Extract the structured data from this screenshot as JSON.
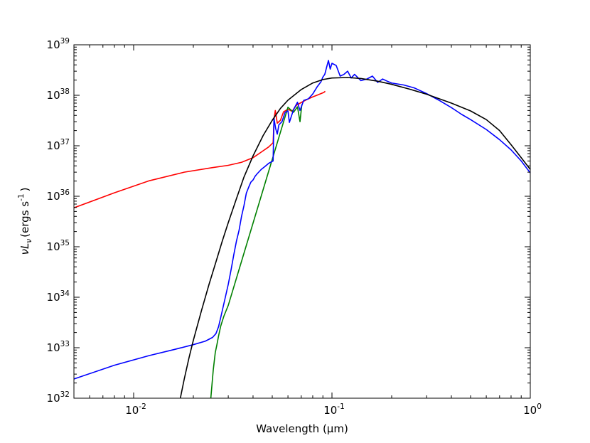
{
  "chart_data": {
    "type": "line",
    "title": "",
    "xlabel": "Wavelength (μm)",
    "ylabel": "νLν (ergs s⁻¹ )",
    "xlabel_parts": {
      "main": "Wavelength (μm)"
    },
    "ylabel_parts": {
      "nu": "ν",
      "L": "L",
      "sub": "ν",
      "rest": "(ergs s",
      "sup": "-1",
      "close": ")"
    },
    "x_scale": "log",
    "y_scale": "log",
    "xlim": [
      0.005,
      1.0
    ],
    "ylim": [
      1e+32,
      1e+39
    ],
    "grid": false,
    "legend": "none",
    "x_ticks": [
      {
        "value": 0.01,
        "base": "10",
        "exp": "-2"
      },
      {
        "value": 0.1,
        "base": "10",
        "exp": "-1"
      },
      {
        "value": 1.0,
        "base": "10",
        "exp": "0"
      }
    ],
    "y_ticks": [
      {
        "value": 1e+32,
        "base": "10",
        "exp": "32"
      },
      {
        "value": 1e+33,
        "base": "10",
        "exp": "33"
      },
      {
        "value": 1e+34,
        "base": "10",
        "exp": "34"
      },
      {
        "value": 1e+35,
        "base": "10",
        "exp": "35"
      },
      {
        "value": 1e+36,
        "base": "10",
        "exp": "36"
      },
      {
        "value": 1e+37,
        "base": "10",
        "exp": "37"
      },
      {
        "value": 1e+38,
        "base": "10",
        "exp": "38"
      },
      {
        "value": 1e+39,
        "base": "10",
        "exp": "39"
      }
    ],
    "series": [
      {
        "color": "#ff0000",
        "points": [
          [
            0.005,
            5.9e+35
          ],
          [
            0.008,
            1.17e+36
          ],
          [
            0.012,
            2.03e+36
          ],
          [
            0.018,
            3e+36
          ],
          [
            0.025,
            3.7e+36
          ],
          [
            0.03,
            4.1e+36
          ],
          [
            0.035,
            4.7e+36
          ],
          [
            0.04,
            5.8e+36
          ],
          [
            0.044,
            7.5e+36
          ],
          [
            0.048,
            9.5e+36
          ],
          [
            0.0505,
            1.15e+37
          ],
          [
            0.0511,
            3.5e+37
          ],
          [
            0.0518,
            5e+37
          ],
          [
            0.053,
            2.8e+37
          ],
          [
            0.055,
            3.2e+37
          ],
          [
            0.057,
            4.7e+37
          ],
          [
            0.06,
            5.3e+37
          ],
          [
            0.063,
            4.8e+37
          ],
          [
            0.066,
            6.3e+37
          ],
          [
            0.07,
            7.2e+37
          ],
          [
            0.075,
            8.3e+37
          ],
          [
            0.08,
            9.3e+37
          ],
          [
            0.085,
            1.02e+38
          ],
          [
            0.088,
            1.08e+38
          ],
          [
            0.091,
            1.14e+38
          ],
          [
            0.0925,
            1.2e+38
          ]
        ]
      },
      {
        "color": "#008000",
        "points": [
          [
            0.0245,
            1e+32
          ],
          [
            0.0252,
            3.6e+32
          ],
          [
            0.0258,
            8e+32
          ],
          [
            0.0263,
            1.15e+33
          ],
          [
            0.0268,
            1.7e+33
          ],
          [
            0.0275,
            2.7e+33
          ],
          [
            0.0285,
            4.2e+33
          ],
          [
            0.03,
            6.9e+33
          ],
          [
            0.06,
            5.8e+37
          ],
          [
            0.064,
            4.6e+37
          ],
          [
            0.067,
            5.9e+37
          ],
          [
            0.069,
            3e+37
          ],
          [
            0.0705,
            6.6e+37
          ]
        ]
      },
      {
        "color": "#0000ff",
        "points": [
          [
            0.005,
            2.4e+32
          ],
          [
            0.008,
            4.5e+32
          ],
          [
            0.012,
            7e+32
          ],
          [
            0.016,
            9.2e+32
          ],
          [
            0.02,
            1.15e+33
          ],
          [
            0.023,
            1.35e+33
          ],
          [
            0.025,
            1.6e+33
          ],
          [
            0.026,
            1.9e+33
          ],
          [
            0.0268,
            2.6e+33
          ],
          [
            0.0275,
            4e+33
          ],
          [
            0.029,
            1e+34
          ],
          [
            0.03,
            1.8e+34
          ],
          [
            0.031,
            3.5e+34
          ],
          [
            0.032,
            7e+34
          ],
          [
            0.033,
            1.3e+35
          ],
          [
            0.034,
            2.1e+35
          ],
          [
            0.035,
            4e+35
          ],
          [
            0.036,
            6.5e+35
          ],
          [
            0.037,
            1.15e+36
          ],
          [
            0.038,
            1.5e+36
          ],
          [
            0.039,
            1.9e+36
          ],
          [
            0.04,
            2.1e+36
          ],
          [
            0.041,
            2.5e+36
          ],
          [
            0.042,
            2.8e+36
          ],
          [
            0.044,
            3.4e+36
          ],
          [
            0.046,
            3.9e+36
          ],
          [
            0.048,
            4.5e+36
          ],
          [
            0.0505,
            5e+36
          ],
          [
            0.051,
            3.5e+37
          ],
          [
            0.052,
            2.2e+37
          ],
          [
            0.053,
            1.7e+37
          ],
          [
            0.054,
            2.6e+37
          ],
          [
            0.056,
            3e+37
          ],
          [
            0.058,
            4.6e+37
          ],
          [
            0.06,
            4.9e+37
          ],
          [
            0.061,
            2.9e+37
          ],
          [
            0.064,
            5.2e+37
          ],
          [
            0.067,
            7.3e+37
          ],
          [
            0.069,
            5e+37
          ],
          [
            0.072,
            7.9e+37
          ],
          [
            0.076,
            8.5e+37
          ],
          [
            0.08,
            1.06e+38
          ],
          [
            0.084,
            1.45e+38
          ],
          [
            0.088,
            1.85e+38
          ],
          [
            0.09,
            2.3e+38
          ],
          [
            0.092,
            2.6e+38
          ],
          [
            0.094,
            3.6e+38
          ],
          [
            0.096,
            4.9e+38
          ],
          [
            0.098,
            3.3e+38
          ],
          [
            0.1,
            4.3e+38
          ],
          [
            0.105,
            3.9e+38
          ],
          [
            0.11,
            2.4e+38
          ],
          [
            0.115,
            2.6e+38
          ],
          [
            0.12,
            3e+38
          ],
          [
            0.125,
            2.2e+38
          ],
          [
            0.13,
            2.6e+38
          ],
          [
            0.14,
            1.95e+38
          ],
          [
            0.15,
            2.1e+38
          ],
          [
            0.16,
            2.4e+38
          ],
          [
            0.17,
            1.8e+38
          ],
          [
            0.18,
            2.1e+38
          ],
          [
            0.19,
            1.9e+38
          ],
          [
            0.2,
            1.75e+38
          ],
          [
            0.23,
            1.6e+38
          ],
          [
            0.26,
            1.4e+38
          ],
          [
            0.3,
            1.08e+38
          ],
          [
            0.35,
            7.8e+37
          ],
          [
            0.4,
            5.7e+37
          ],
          [
            0.45,
            4.2e+37
          ],
          [
            0.5,
            3.3e+37
          ],
          [
            0.6,
            2.1e+37
          ],
          [
            0.7,
            1.32e+37
          ],
          [
            0.8,
            8.3e+36
          ],
          [
            0.9,
            5e+36
          ],
          [
            1.0,
            2.9e+36
          ]
        ]
      },
      {
        "color": "#000000",
        "points": [
          [
            0.0172,
            1e+32
          ],
          [
            0.018,
            2.4e+32
          ],
          [
            0.019,
            6.2e+32
          ],
          [
            0.02,
            1.4e+33
          ],
          [
            0.022,
            5.5e+33
          ],
          [
            0.024,
            1.8e+34
          ],
          [
            0.026,
            5e+34
          ],
          [
            0.028,
            1.3e+35
          ],
          [
            0.03,
            3e+35
          ],
          [
            0.033,
            9e+35
          ],
          [
            0.036,
            2.4e+36
          ],
          [
            0.04,
            6.3e+36
          ],
          [
            0.045,
            1.6e+37
          ],
          [
            0.05,
            3.2e+37
          ],
          [
            0.055,
            5.5e+37
          ],
          [
            0.06,
            8e+37
          ],
          [
            0.07,
            1.3e+38
          ],
          [
            0.08,
            1.75e+38
          ],
          [
            0.09,
            2.05e+38
          ],
          [
            0.1,
            2.2e+38
          ],
          [
            0.12,
            2.25e+38
          ],
          [
            0.14,
            2.15e+38
          ],
          [
            0.17,
            1.9e+38
          ],
          [
            0.2,
            1.65e+38
          ],
          [
            0.25,
            1.3e+38
          ],
          [
            0.3,
            1.05e+38
          ],
          [
            0.4,
            7e+37
          ],
          [
            0.5,
            4.9e+37
          ],
          [
            0.6,
            3.3e+37
          ],
          [
            0.7,
            2e+37
          ],
          [
            0.8,
            1.05e+37
          ],
          [
            0.9,
            5.8e+36
          ],
          [
            1.0,
            3.4e+36
          ]
        ]
      }
    ]
  }
}
